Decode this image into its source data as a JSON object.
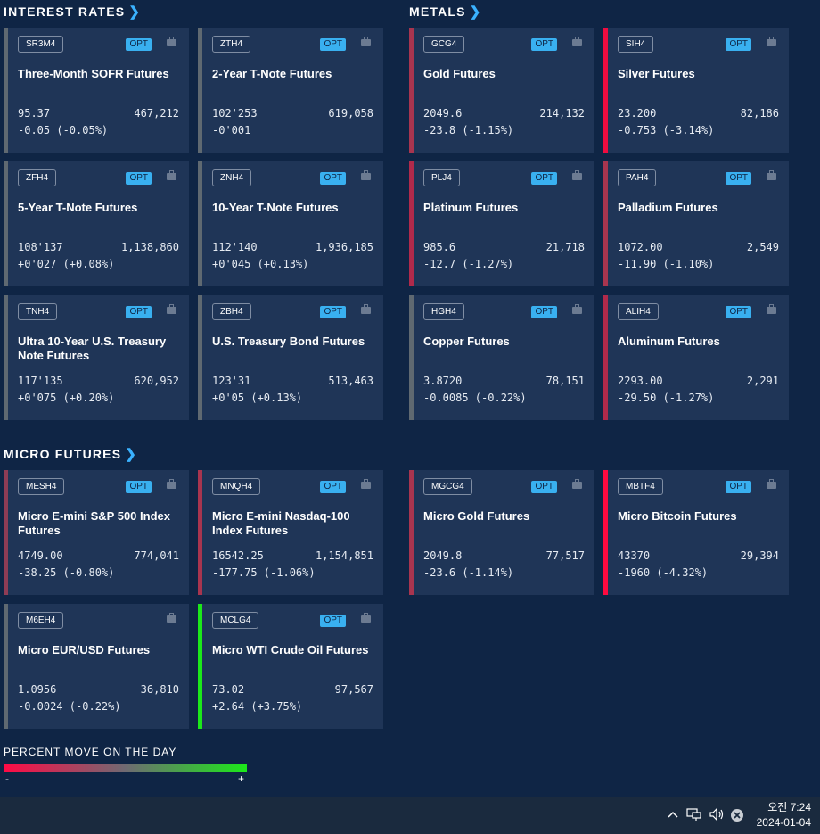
{
  "sections": {
    "interest_rates": "INTEREST RATES",
    "metals": "METALS",
    "micro_futures": "MICRO FUTURES",
    "chevron": "❯"
  },
  "cards": [
    {
      "symbol": "SR3M4",
      "opt": "OPT",
      "name": "Three-Month SOFR Futures",
      "price": "95.37",
      "volume": "467,212",
      "change": "-0.05 (-0.05%)",
      "color": "#5f6971"
    },
    {
      "symbol": "ZTH4",
      "opt": "OPT",
      "name": "2-Year T-Note Futures",
      "price": "102'253",
      "volume": "619,058",
      "change": "-0'001",
      "color": "#5f6971"
    },
    {
      "symbol": "GCG4",
      "opt": "OPT",
      "name": "Gold Futures",
      "price": "2049.6",
      "volume": "214,132",
      "change": "-23.8 (-1.15%)",
      "color": "#a8354f"
    },
    {
      "symbol": "SIH4",
      "opt": "OPT",
      "name": "Silver Futures",
      "price": "23.200",
      "volume": "82,186",
      "change": "-0.753 (-3.14%)",
      "color": "#ef0c40"
    },
    {
      "symbol": "ZFH4",
      "opt": "OPT",
      "name": "5-Year T-Note Futures",
      "price": "108'137",
      "volume": "1,138,860",
      "change": "+0'027 (+0.08%)",
      "color": "#5f6971"
    },
    {
      "symbol": "ZNH4",
      "opt": "OPT",
      "name": "10-Year T-Note Futures",
      "price": "112'140",
      "volume": "1,936,185",
      "change": "+0'045 (+0.13%)",
      "color": "#5f6971"
    },
    {
      "symbol": "PLJ4",
      "opt": "OPT",
      "name": "Platinum Futures",
      "price": "985.6",
      "volume": "21,718",
      "change": "-12.7 (-1.27%)",
      "color": "#b02a4b"
    },
    {
      "symbol": "PAH4",
      "opt": "OPT",
      "name": "Palladium Futures",
      "price": "1072.00",
      "volume": "2,549",
      "change": "-11.90 (-1.10%)",
      "color": "#a8354f"
    },
    {
      "symbol": "TNH4",
      "opt": "OPT",
      "name": "Ultra 10-Year U.S. Treasury Note Futures",
      "price": "117'135",
      "volume": "620,952",
      "change": "+0'075 (+0.20%)",
      "color": "#5f6971"
    },
    {
      "symbol": "ZBH4",
      "opt": "OPT",
      "name": "U.S. Treasury Bond Futures",
      "price": "123'31",
      "volume": "513,463",
      "change": "+0'05 (+0.13%)",
      "color": "#5f6971"
    },
    {
      "symbol": "HGH4",
      "opt": "OPT",
      "name": "Copper Futures",
      "price": "3.8720",
      "volume": "78,151",
      "change": "-0.0085 (-0.22%)",
      "color": "#5f6971"
    },
    {
      "symbol": "ALIH4",
      "opt": "OPT",
      "name": "Aluminum Futures",
      "price": "2293.00",
      "volume": "2,291",
      "change": "-29.50 (-1.27%)",
      "color": "#b02a4b"
    },
    {
      "symbol": "MESH4",
      "opt": "OPT",
      "name": "Micro E-mini S&P 500 Index Futures",
      "price": "4749.00",
      "volume": "774,041",
      "change": "-38.25 (-0.80%)",
      "color": "#8e3c55"
    },
    {
      "symbol": "MNQH4",
      "opt": "OPT",
      "name": "Micro E-mini Nasdaq-100 Index Futures",
      "price": "16542.25",
      "volume": "1,154,851",
      "change": "-177.75 (-1.06%)",
      "color": "#a8354f"
    },
    {
      "symbol": "MGCG4",
      "opt": "OPT",
      "name": "Micro Gold Futures",
      "price": "2049.8",
      "volume": "77,517",
      "change": "-23.6 (-1.14%)",
      "color": "#a8354f"
    },
    {
      "symbol": "MBTF4",
      "opt": "OPT",
      "name": "Micro Bitcoin Futures",
      "price": "43370",
      "volume": "29,394",
      "change": "-1960 (-4.32%)",
      "color": "#ff0a40"
    },
    {
      "symbol": "M6EH4",
      "opt": "",
      "name": "Micro EUR/USD Futures",
      "price": "1.0956",
      "volume": "36,810",
      "change": "-0.0024 (-0.22%)",
      "color": "#5f6971"
    },
    {
      "symbol": "MCLG4",
      "opt": "OPT",
      "name": "Micro WTI Crude Oil Futures",
      "price": "73.02",
      "volume": "97,567",
      "change": "+2.64 (+3.75%)",
      "color": "#1ce81a"
    }
  ],
  "legend": {
    "label": "PERCENT MOVE ON THE DAY",
    "minus": "-",
    "plus": "+",
    "low_color": "#ff0a45",
    "high_color": "#1ce81a"
  },
  "taskbar": {
    "time": "오전 7:24",
    "date": "2024-01-04",
    "tray_icons": [
      "chevron-up-icon",
      "network-icon",
      "speaker-icon",
      "error-icon"
    ]
  }
}
